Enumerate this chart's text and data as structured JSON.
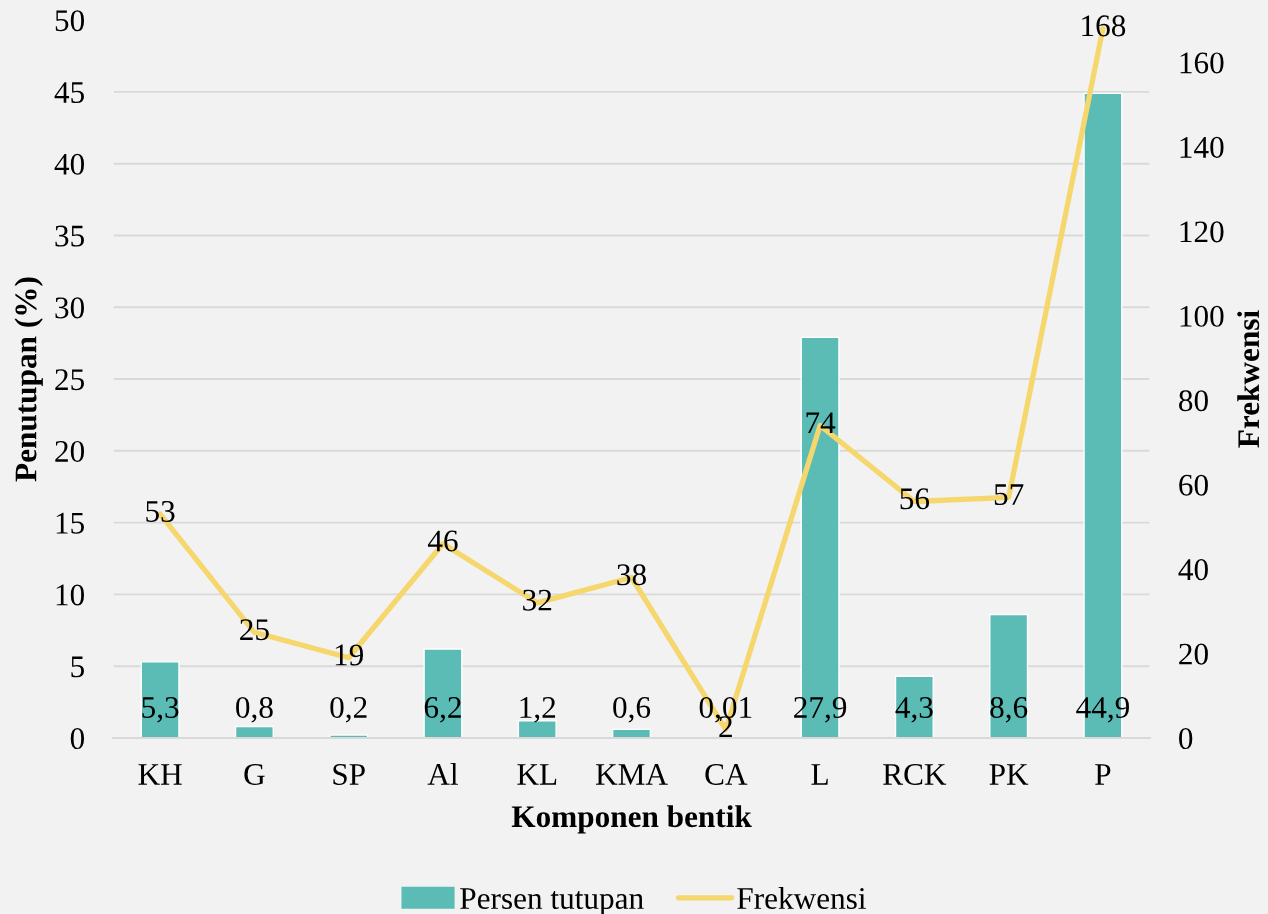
{
  "chart_data": {
    "type": "bar",
    "categories": [
      "KH",
      "G",
      "SP",
      "Al",
      "KL",
      "KMA",
      "CA",
      "L",
      "RCK",
      "PK",
      "P"
    ],
    "series": [
      {
        "name": "Persen tutupan",
        "color": "#5bbcb6",
        "values": [
          5.3,
          0.8,
          0.2,
          6.2,
          1.2,
          0.6,
          0.01,
          27.9,
          4.3,
          8.6,
          44.9
        ],
        "value_labels": [
          "5,3",
          "0,8",
          "0,2",
          "6,2",
          "1,2",
          "0,6",
          "0,01",
          "27,9",
          "4,3",
          "8,6",
          "44,9"
        ]
      },
      {
        "name": "Frekwensi",
        "type": "line",
        "axis": "y2",
        "color": "#f5d76e",
        "values": [
          53,
          25,
          19,
          46,
          32,
          38,
          2,
          74,
          56,
          57,
          168
        ],
        "value_labels": [
          "53",
          "25",
          "19",
          "46",
          "32",
          "38",
          "2",
          "74",
          "56",
          "57",
          "168"
        ]
      }
    ],
    "xlabel": "Komponen bentik",
    "ylabel": "Penutupan (%)",
    "y2label": "Frekwensi",
    "ylim": [
      0,
      50
    ],
    "yticks": [
      0,
      5,
      10,
      15,
      20,
      25,
      30,
      35,
      40,
      45,
      50
    ],
    "y2lim": [
      0,
      170
    ],
    "y2ticks": [
      0,
      20,
      40,
      60,
      80,
      100,
      120,
      140,
      160
    ],
    "grid": "y",
    "legend": "bottom",
    "line_style": "solid"
  }
}
